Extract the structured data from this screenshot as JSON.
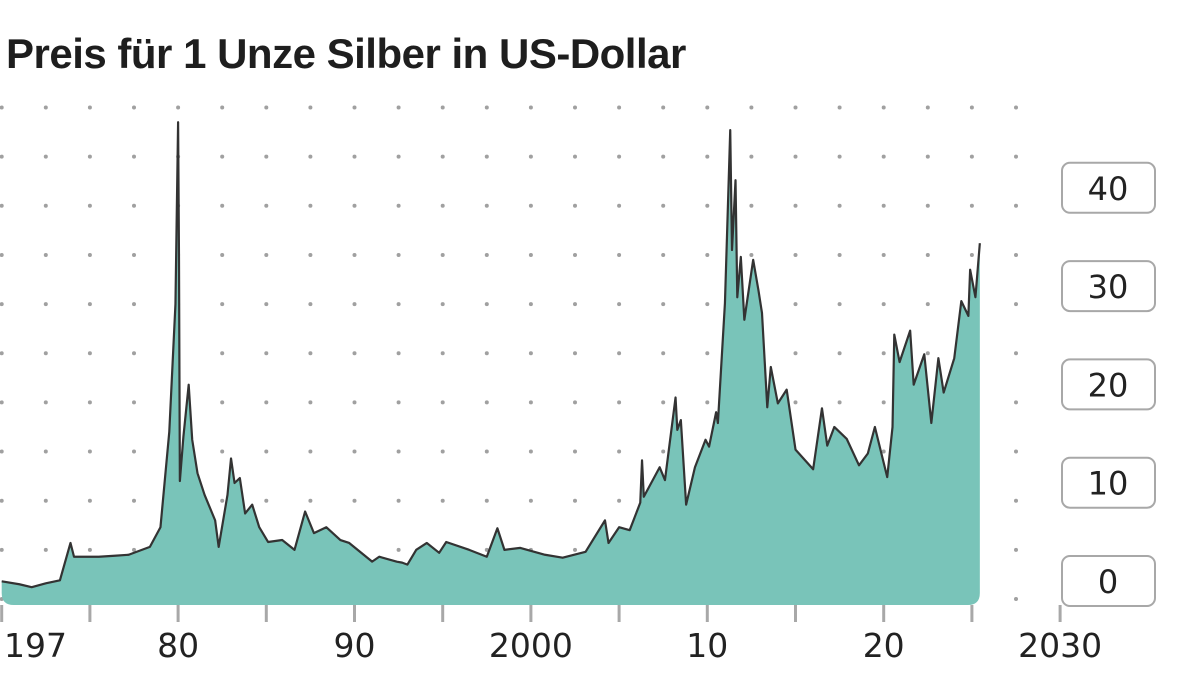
{
  "title": "Preis für 1 Unze Silber in US-Dollar",
  "chart_data": {
    "type": "area",
    "title": "Preis für 1 Unze Silber in US-Dollar",
    "xlabel": "",
    "ylabel": "",
    "xlim": [
      1970,
      2030
    ],
    "ylim": [
      0,
      50
    ],
    "grid": "dotted",
    "x_ticks": [
      1970,
      1975,
      1980,
      1985,
      1990,
      1995,
      2000,
      2005,
      2010,
      2015,
      2020,
      2025,
      2030
    ],
    "x_tick_labels": [
      {
        "value": 1970,
        "label": "197"
      },
      {
        "value": 1980,
        "label": "80"
      },
      {
        "value": 1990,
        "label": "90"
      },
      {
        "value": 2000,
        "label": "2000"
      },
      {
        "value": 2010,
        "label": "10"
      },
      {
        "value": 2020,
        "label": "20"
      },
      {
        "value": 2030,
        "label": "2030"
      }
    ],
    "y_tick_labels": [
      {
        "value": 0,
        "label": "0"
      },
      {
        "value": 10,
        "label": "10"
      },
      {
        "value": 20,
        "label": "20"
      },
      {
        "value": 30,
        "label": "30"
      },
      {
        "value": 40,
        "label": "40"
      }
    ],
    "colors": {
      "fill": "#79c4b9",
      "line": "#333333",
      "grid": "#a0a0a0",
      "label_border": "#a8a8a8"
    },
    "series": [
      {
        "x": [
          1970.0,
          1971.0,
          1971.7,
          1972.5,
          1973.3,
          1973.9,
          1974.1,
          1975.5,
          1976.4,
          1977.2,
          1978.4,
          1979.0,
          1979.5,
          1979.85,
          1980.0,
          1980.05,
          1980.1,
          1980.3,
          1980.6,
          1980.8,
          1981.1,
          1981.5,
          1982.1,
          1982.3,
          1982.8,
          1983.0,
          1983.2,
          1983.5,
          1983.8,
          1984.2,
          1984.6,
          1985.1,
          1985.9,
          1986.6,
          1987.2,
          1987.7,
          1988.4,
          1989.2,
          1989.7,
          1991.0,
          1991.4,
          1992.4,
          1992.7,
          1993.0,
          1993.5,
          1994.1,
          1994.8,
          1995.2,
          1996.5,
          1997.5,
          1998.1,
          1998.5,
          1999.4,
          2000.8,
          2001.8,
          2003.1,
          2004.2,
          2004.4,
          2005.0,
          2005.6,
          2006.2,
          2006.3,
          2006.4,
          2007.3,
          2007.6,
          2008.2,
          2008.3,
          2008.5,
          2008.8,
          2009.3,
          2009.9,
          2010.1,
          2010.5,
          2010.6,
          2010.8,
          2011.0,
          2011.3,
          2011.4,
          2011.6,
          2011.7,
          2011.9,
          2012.1,
          2012.6,
          2012.9,
          2013.1,
          2013.4,
          2013.6,
          2014.0,
          2014.5,
          2015.0,
          2016.0,
          2016.5,
          2016.8,
          2017.2,
          2017.9,
          2018.6,
          2019.1,
          2019.5,
          2020.2,
          2020.5,
          2020.6,
          2020.9,
          2021.5,
          2021.7,
          2022.3,
          2022.7,
          2023.1,
          2023.4,
          2024.0,
          2024.4,
          2024.8,
          2024.9,
          2025.2,
          2025.45
        ],
        "y": [
          1.8,
          1.5,
          1.2,
          1.6,
          1.9,
          5.7,
          4.3,
          4.3,
          4.4,
          4.5,
          5.3,
          7.3,
          17,
          30,
          48.5,
          34.8,
          12,
          16.5,
          21.8,
          16.2,
          12.8,
          10.6,
          8.0,
          5.3,
          10.6,
          14.3,
          11.8,
          12.3,
          8.7,
          9.6,
          7.3,
          5.8,
          6.0,
          5.0,
          8.9,
          6.7,
          7.3,
          6.0,
          5.7,
          3.8,
          4.3,
          3.8,
          3.7,
          3.5,
          5.0,
          5.7,
          4.7,
          5.8,
          5.0,
          4.3,
          7.2,
          5.0,
          5.2,
          4.5,
          4.2,
          4.8,
          8.0,
          5.7,
          7.3,
          7.0,
          9.8,
          14.1,
          10.4,
          13.4,
          12.1,
          20.5,
          17.2,
          18.2,
          9.6,
          13.4,
          16.2,
          15.5,
          19.0,
          17.9,
          24.0,
          30.1,
          47.7,
          35.5,
          42.6,
          30.7,
          34.8,
          28.4,
          34.5,
          31.4,
          29.1,
          19.5,
          23.6,
          19.9,
          21.3,
          15.2,
          13.2,
          19.4,
          15.6,
          17.5,
          16.3,
          13.6,
          14.8,
          17.5,
          12.4,
          17.5,
          26.9,
          24.1,
          27.3,
          21.8,
          24.9,
          17.9,
          24.5,
          21.0,
          24.5,
          30.3,
          28.8,
          33.5,
          30.7,
          36.2
        ]
      }
    ]
  }
}
